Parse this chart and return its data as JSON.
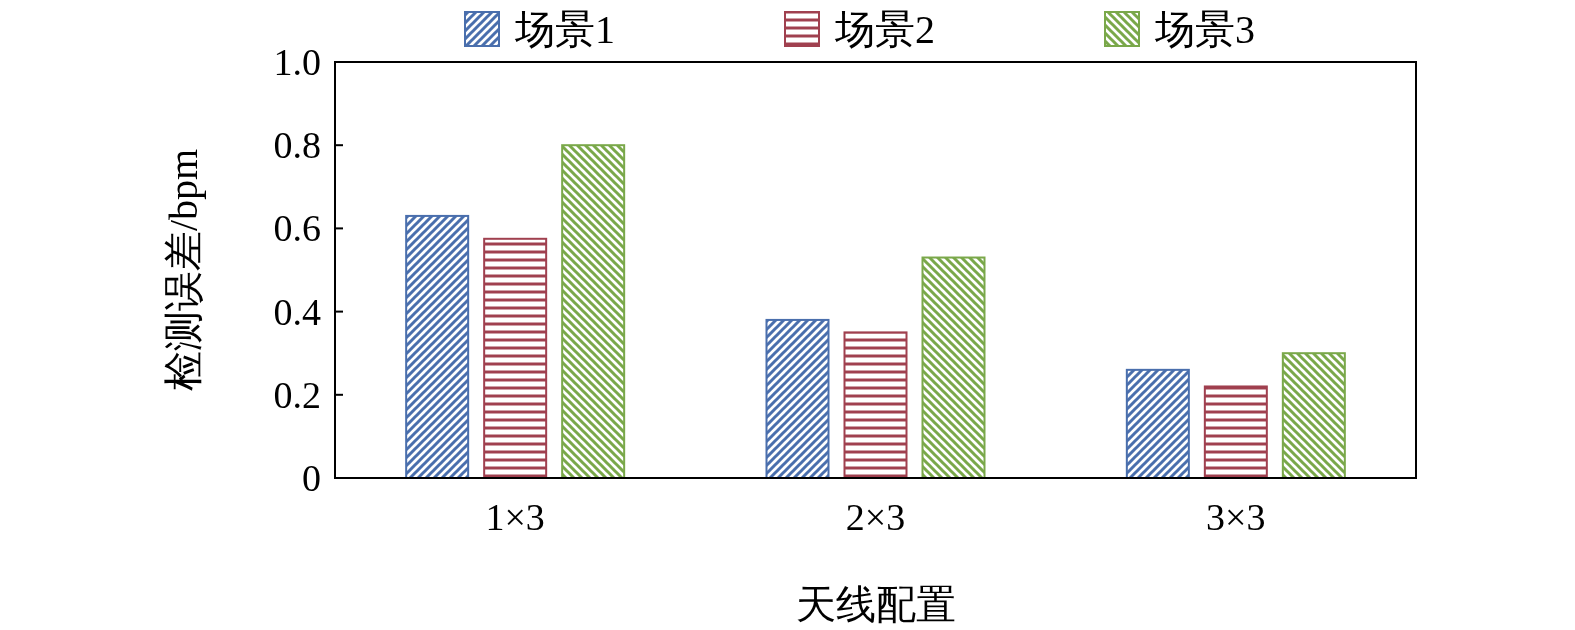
{
  "chart_data": {
    "type": "bar",
    "xlabel": "天线配置",
    "ylabel": "检测误差/bpm",
    "categories": [
      "1×3",
      "2×3",
      "3×3"
    ],
    "series": [
      {
        "name": "场景1",
        "color": "#4a6fad",
        "values": [
          0.63,
          0.38,
          0.26
        ]
      },
      {
        "name": "场景2",
        "color": "#a0404f",
        "values": [
          0.575,
          0.35,
          0.22
        ]
      },
      {
        "name": "场景3",
        "color": "#7aa84a",
        "values": [
          0.8,
          0.53,
          0.3
        ]
      }
    ],
    "ylim": [
      0,
      1.0
    ],
    "yticks": [
      {
        "value": 0,
        "label": "0"
      },
      0.2,
      0.4,
      0.6,
      0.8,
      {
        "value": 1.0,
        "label": "1.0"
      }
    ],
    "grid": false,
    "legend": "top"
  }
}
